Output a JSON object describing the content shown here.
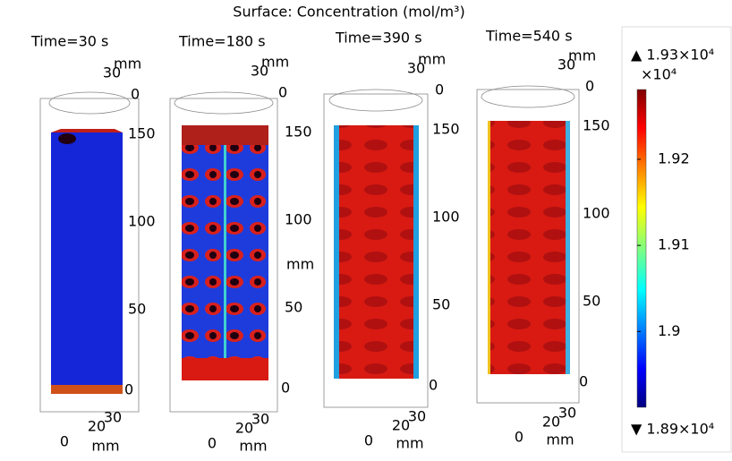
{
  "title": "Surface: Concentration (mol/m³)",
  "panels": [
    {
      "time": "Time=30 s",
      "top_width": "30",
      "top_unit": "mm",
      "top_zero": "0",
      "z_ticks": [
        "150",
        "100",
        "50",
        "0"
      ],
      "base": [
        "0",
        "20",
        "30"
      ],
      "base_unit": "mm"
    },
    {
      "time": "Time=180 s",
      "top_width": "30",
      "top_unit": "mm",
      "top_zero": "0",
      "z_ticks": [
        "150",
        "100",
        "50",
        "0"
      ],
      "z_unit": "mm",
      "base": [
        "0",
        "20",
        "30"
      ],
      "base_unit": "mm"
    },
    {
      "time": "Time=390 s",
      "top_width": "30",
      "top_unit": "mm",
      "top_zero": "0",
      "z_ticks": [
        "150",
        "100",
        "50",
        "0"
      ],
      "base": [
        "0",
        "20",
        "30"
      ],
      "base_unit": "mm"
    },
    {
      "time": "Time=540 s",
      "top_width": "30",
      "top_unit": "mm",
      "top_zero": "0",
      "z_ticks": [
        "150",
        "100",
        "50",
        "0"
      ],
      "base": [
        "0",
        "20",
        "30"
      ],
      "base_unit": "mm"
    }
  ],
  "colorbar": {
    "max_label": "▲ 1.93×10⁴",
    "exponent": "×10⁴",
    "min_label": "▼ 1.89×10⁴",
    "range": [
      1.8912,
      1.9281
    ],
    "ticks": [
      1.92,
      1.91,
      1.9
    ]
  }
}
